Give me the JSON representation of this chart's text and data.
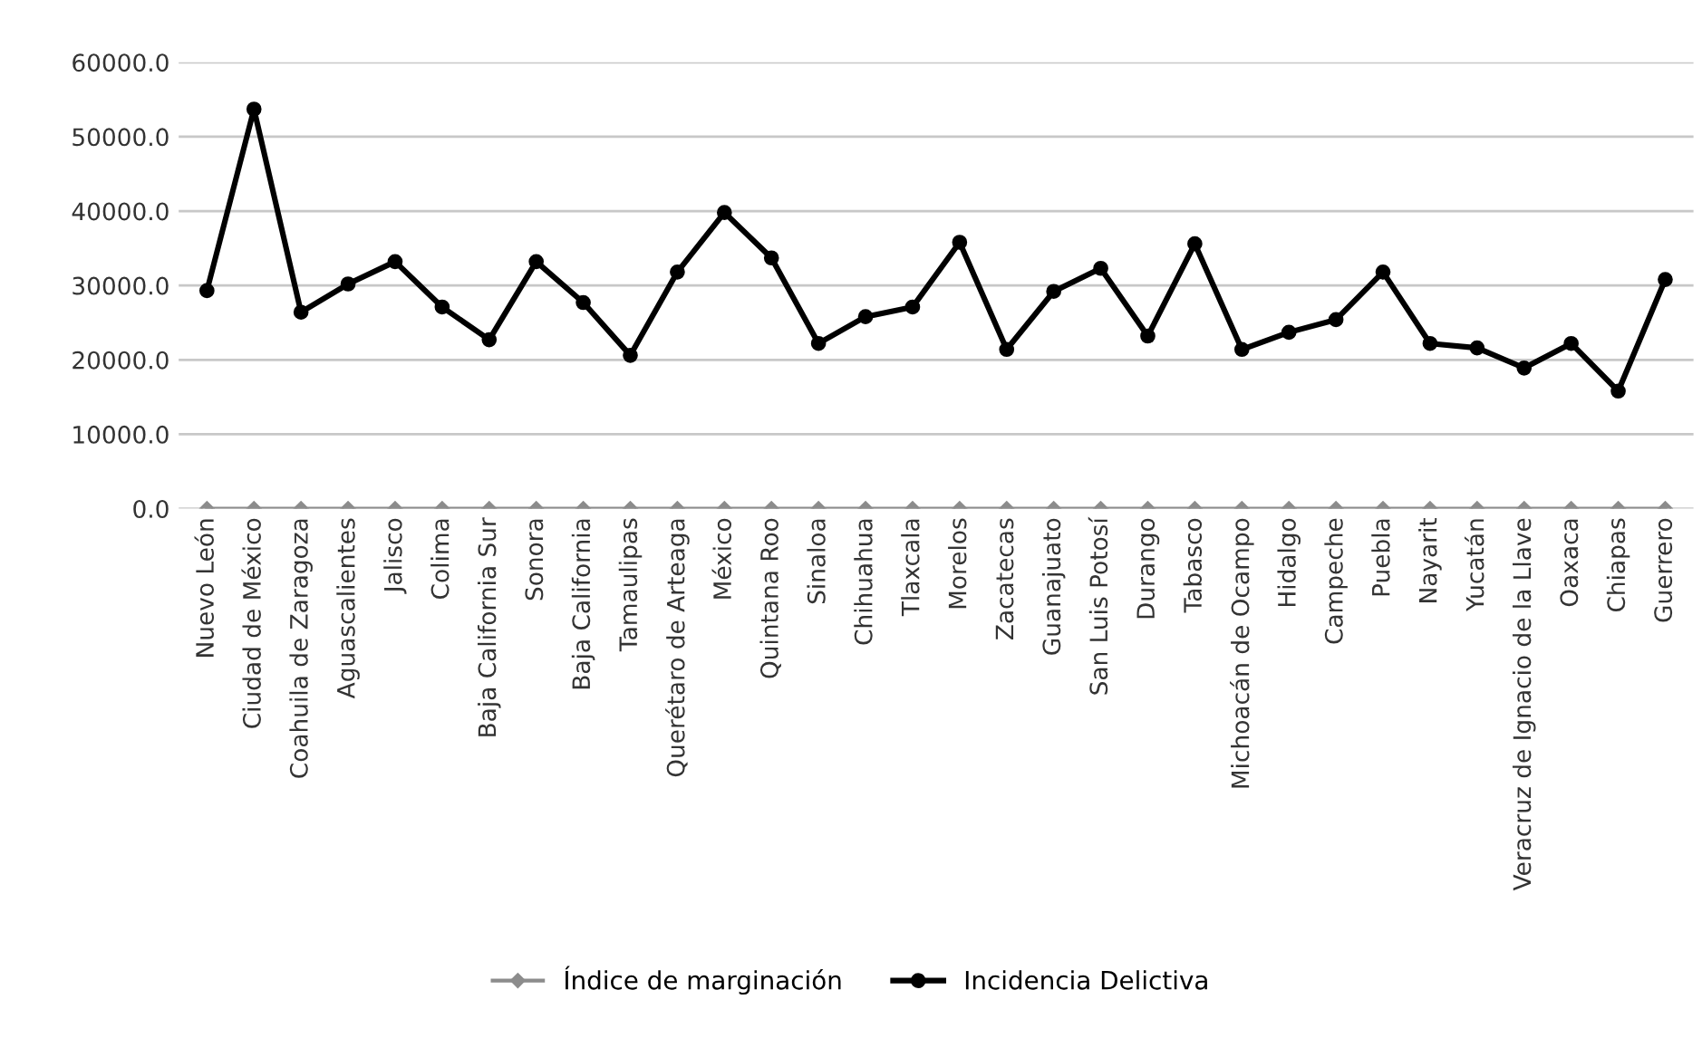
{
  "chart_data": {
    "type": "line",
    "categories": [
      "Nuevo León",
      "Ciudad de México",
      "Coahuila de Zaragoza",
      "Aguascalientes",
      "Jalisco",
      "Colima",
      "Baja California Sur",
      "Sonora",
      "Baja California",
      "Tamaulipas",
      "Querétaro de Arteaga",
      "México",
      "Quintana Roo",
      "Sinaloa",
      "Chihuahua",
      "Tlaxcala",
      "Morelos",
      "Zacatecas",
      "Guanajuato",
      "San Luis Potosí",
      "Durango",
      "Tabasco",
      "Michoacán de Ocampo",
      "Hidalgo",
      "Campeche",
      "Puebla",
      "Nayarit",
      "Yucatán",
      "Veracruz de Ignacio de la Llave",
      "Oaxaca",
      "Chiapas",
      "Guerrero"
    ],
    "series": [
      {
        "name": "Índice de marginación",
        "color": "#8c8c8c",
        "marker": "diamond",
        "values": [
          0,
          0,
          0,
          0,
          0,
          0,
          0,
          0,
          0,
          0,
          0,
          0,
          0,
          0,
          0,
          0,
          0,
          0,
          0,
          0,
          0,
          0,
          0,
          0,
          0,
          0,
          0,
          0,
          0,
          0,
          0,
          0
        ]
      },
      {
        "name": "Incidencia Delictiva",
        "color": "#000000",
        "marker": "circle",
        "values": [
          29300,
          53700,
          26400,
          30200,
          33200,
          27100,
          22700,
          33200,
          27700,
          20600,
          31800,
          39800,
          33700,
          22200,
          25800,
          27100,
          35800,
          21400,
          29200,
          32300,
          23200,
          35600,
          21400,
          23700,
          25400,
          31800,
          22200,
          21600,
          18900,
          22200,
          15800,
          30800
        ]
      }
    ],
    "ylim": [
      0,
      60000
    ],
    "yticks": [
      {
        "value": 0,
        "label": "0.0"
      },
      {
        "value": 10000,
        "label": "10000.0"
      },
      {
        "value": 20000,
        "label": "20000.0"
      },
      {
        "value": 30000,
        "label": "30000.0"
      },
      {
        "value": 40000,
        "label": "40000.0"
      },
      {
        "value": 50000,
        "label": "50000.0"
      },
      {
        "value": 60000,
        "label": "60000.0"
      }
    ],
    "grid": "y",
    "legend": "bottom",
    "line_style": "solid"
  }
}
